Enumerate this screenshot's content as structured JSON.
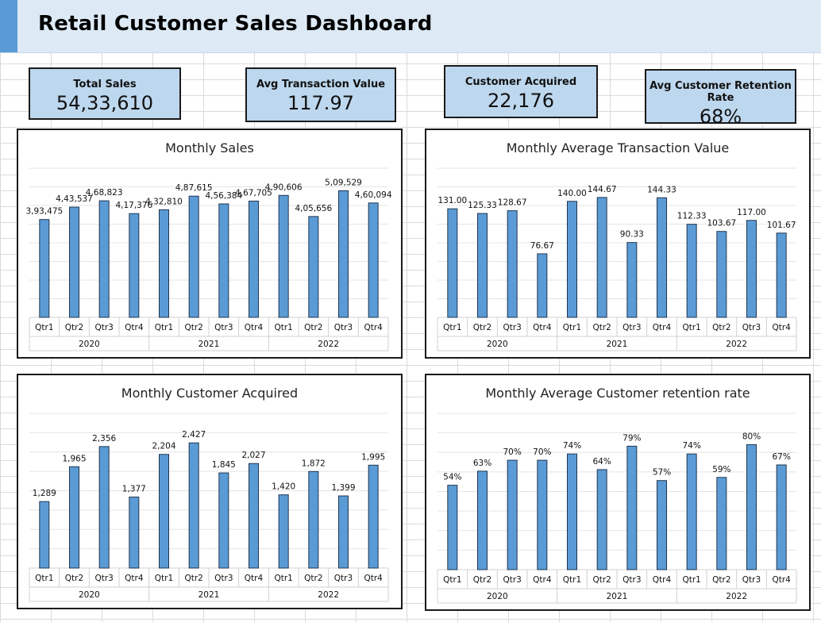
{
  "header": {
    "title": "Retail Customer Sales Dashboard"
  },
  "kpis": [
    {
      "label": "Total Sales",
      "value": "54,33,610"
    },
    {
      "label": "Avg Transaction Value",
      "value": "117.97"
    },
    {
      "label": "Customer Acquired",
      "value": "22,176"
    },
    {
      "label": "Avg Customer Retention Rate",
      "value": "68%"
    }
  ],
  "chart_data": [
    {
      "type": "bar",
      "title": "Monthly Sales",
      "categories": [
        "Qtr1",
        "Qtr2",
        "Qtr3",
        "Qtr4",
        "Qtr1",
        "Qtr2",
        "Qtr3",
        "Qtr4",
        "Qtr1",
        "Qtr2",
        "Qtr3",
        "Qtr4"
      ],
      "groups": [
        "2020",
        "2021",
        "2022"
      ],
      "values": [
        393475,
        443537,
        468823,
        417376,
        432810,
        487615,
        456384,
        467705,
        490606,
        405656,
        509529,
        460094
      ],
      "labels": [
        "3,93,475",
        "4,43,537",
        "4,68,823",
        "4,17,376",
        "4,32,810",
        "4,87,615",
        "4,56,384",
        "4,67,705",
        "4,90,606",
        "4,05,656",
        "5,09,529",
        "4,60,094"
      ],
      "ylim": [
        0,
        600000
      ],
      "color": "#5b9bd5",
      "grid": true
    },
    {
      "type": "bar",
      "title": "Monthly Average Transaction Value",
      "categories": [
        "Qtr1",
        "Qtr2",
        "Qtr3",
        "Qtr4",
        "Qtr1",
        "Qtr2",
        "Qtr3",
        "Qtr4",
        "Qtr1",
        "Qtr2",
        "Qtr3",
        "Qtr4"
      ],
      "groups": [
        "2020",
        "2021",
        "2022"
      ],
      "values": [
        131.0,
        125.33,
        128.67,
        76.67,
        140.0,
        144.67,
        90.33,
        144.33,
        112.33,
        103.67,
        117.0,
        101.67
      ],
      "labels": [
        "131.00",
        "125.33",
        "128.67",
        "76.67",
        "140.00",
        "144.67",
        "90.33",
        "144.33",
        "112.33",
        "103.67",
        "117.00",
        "101.67"
      ],
      "ylim": [
        0,
        180
      ],
      "color": "#5b9bd5",
      "grid": true
    },
    {
      "type": "bar",
      "title": "Monthly Customer Acquired",
      "categories": [
        "Qtr1",
        "Qtr2",
        "Qtr3",
        "Qtr4",
        "Qtr1",
        "Qtr2",
        "Qtr3",
        "Qtr4",
        "Qtr1",
        "Qtr2",
        "Qtr3",
        "Qtr4"
      ],
      "groups": [
        "2020",
        "2021",
        "2022"
      ],
      "values": [
        1289,
        1965,
        2356,
        1377,
        2204,
        2427,
        1845,
        2027,
        1420,
        1872,
        1399,
        1995
      ],
      "labels": [
        "1,289",
        "1,965",
        "2,356",
        "1,377",
        "2,204",
        "2,427",
        "1,845",
        "2,027",
        "1,420",
        "1,872",
        "1,399",
        "1,995"
      ],
      "ylim": [
        0,
        3000
      ],
      "color": "#5b9bd5",
      "grid": true
    },
    {
      "type": "bar",
      "title": "Monthly Average Customer retention rate",
      "categories": [
        "Qtr1",
        "Qtr2",
        "Qtr3",
        "Qtr4",
        "Qtr1",
        "Qtr2",
        "Qtr3",
        "Qtr4",
        "Qtr1",
        "Qtr2",
        "Qtr3",
        "Qtr4"
      ],
      "groups": [
        "2020",
        "2021",
        "2022"
      ],
      "values": [
        54,
        63,
        70,
        70,
        74,
        64,
        79,
        57,
        74,
        59,
        80,
        67
      ],
      "labels": [
        "54%",
        "63%",
        "70%",
        "70%",
        "74%",
        "64%",
        "79%",
        "57%",
        "74%",
        "59%",
        "80%",
        "67%"
      ],
      "ylim": [
        0,
        100
      ],
      "color": "#5b9bd5",
      "grid": true
    }
  ]
}
